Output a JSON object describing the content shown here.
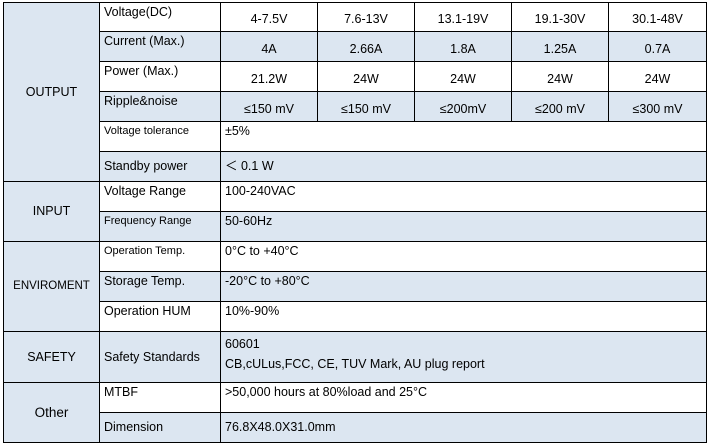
{
  "output": {
    "section": "OUTPUT",
    "voltage": {
      "label": "Voltage(DC)",
      "values": [
        "4-7.5V",
        "7.6-13V",
        "13.1-19V",
        "19.1-30V",
        "30.1-48V"
      ]
    },
    "current": {
      "label": "Current (Max.)",
      "values": [
        "4A",
        "2.66A",
        "1.8A",
        "1.25A",
        "0.7A"
      ]
    },
    "power": {
      "label": "Power (Max.)",
      "values": [
        "21.2W",
        "24W",
        "24W",
        "24W",
        "24W"
      ]
    },
    "ripple": {
      "label": "Ripple&noise",
      "values": [
        "≤150 mV",
        "≤150 mV",
        "≤200mV",
        "≤200 mV",
        "≤300 mV"
      ]
    },
    "tolerance": {
      "label": "Voltage tolerance",
      "value": "±5%"
    },
    "standby": {
      "label": "Standby power",
      "value": "＜ 0.1 W"
    }
  },
  "input": {
    "section": "INPUT",
    "voltage_range": {
      "label": "Voltage Range",
      "value": "100-240VAC"
    },
    "frequency": {
      "label": "Frequency Range",
      "value": "50-60Hz"
    }
  },
  "environment": {
    "section": "ENVIROMENT",
    "op_temp": {
      "label": "Operation Temp.",
      "value": "0°C to +40°C"
    },
    "storage_temp": {
      "label": "Storage Temp.",
      "value": "-20°C to +80°C"
    },
    "humidity": {
      "label": "Operation HUM",
      "value": "10%-90%"
    }
  },
  "safety": {
    "section": "SAFETY",
    "standards": {
      "label": "Safety Standards",
      "line1": "60601",
      "line2": "CB,cULus,FCC, CE, TUV Mark, AU plug report"
    }
  },
  "other": {
    "section": "Other",
    "mtbf": {
      "label": "MTBF",
      "value": ">50,000 hours at 80%load and 25°C"
    },
    "dimension": {
      "label": "Dimension",
      "value": "76.8X48.0X31.0mm"
    }
  },
  "colors": {
    "shade": "#dce6f1",
    "border": "#000000"
  }
}
